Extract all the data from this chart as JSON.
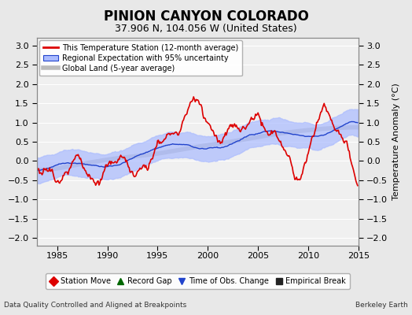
{
  "title": "PINION CANYON COLORADO",
  "subtitle": "37.906 N, 104.056 W (United States)",
  "ylabel": "Temperature Anomaly (°C)",
  "xlabel_left": "Data Quality Controlled and Aligned at Breakpoints",
  "xlabel_right": "Berkeley Earth",
  "xlim": [
    1983,
    2015
  ],
  "ylim": [
    -2.2,
    3.2
  ],
  "yticks": [
    -2,
    -1.5,
    -1,
    -0.5,
    0,
    0.5,
    1,
    1.5,
    2,
    2.5,
    3
  ],
  "xticks": [
    1985,
    1990,
    1995,
    2000,
    2005,
    2010,
    2015
  ],
  "bg_color": "#e8e8e8",
  "plot_bg_color": "#f0f0f0",
  "grid_color": "#ffffff",
  "station_color": "#dd0000",
  "regional_color": "#2244cc",
  "regional_fill": "#aabbff",
  "global_color": "#bbbbbb",
  "legend_items": [
    {
      "label": "This Temperature Station (12-month average)",
      "color": "#dd0000",
      "lw": 2.0
    },
    {
      "label": "Regional Expectation with 95% uncertainty",
      "color": "#2244cc",
      "fill": "#aabbff"
    },
    {
      "label": "Global Land (5-year average)",
      "color": "#bbbbbb",
      "lw": 4.0
    }
  ],
  "bottom_legend": [
    {
      "label": "Station Move",
      "marker": "D",
      "color": "#dd0000"
    },
    {
      "label": "Record Gap",
      "marker": "^",
      "color": "#006600"
    },
    {
      "label": "Time of Obs. Change",
      "marker": "v",
      "color": "#2244cc"
    },
    {
      "label": "Empirical Break",
      "marker": "s",
      "color": "#222222"
    }
  ]
}
